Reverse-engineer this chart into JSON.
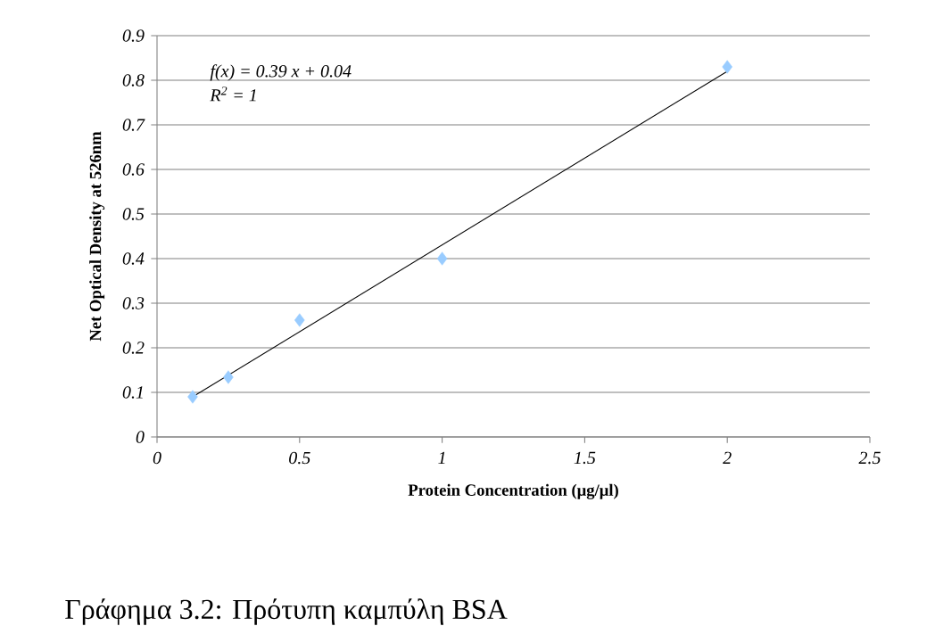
{
  "chart_data": {
    "type": "scatter",
    "xlabel": "Protein Concentration (μg/μl)",
    "ylabel": "Net Optical Density at 526nm",
    "series": [
      {
        "color": "#99ccff",
        "marker": "diamond",
        "x": [
          0.125,
          0.25,
          0.5,
          1,
          2
        ],
        "values": [
          0.09,
          0.134,
          0.262,
          0.4,
          0.83
        ]
      },
      {
        "type": "line",
        "color": "#000000",
        "marker": "none",
        "x": [
          0.125,
          2
        ],
        "values": [
          0.09,
          0.82
        ]
      }
    ],
    "xlim": [
      0,
      2.5
    ],
    "ylim": [
      0,
      0.9
    ],
    "xticks": [
      0,
      0.5,
      1,
      1.5,
      2,
      2.5
    ],
    "yticks": [
      0,
      0.1,
      0.2,
      0.3,
      0.4,
      0.5,
      0.6,
      0.7,
      0.8,
      0.9
    ],
    "grid": "y",
    "annotations": [
      "f(x) = 0.39 x + 0.04",
      "R$^{2}$ = 1",
      "Γράφημα 3.2: Πρότυπη καμπύλη BSA"
    ]
  }
}
